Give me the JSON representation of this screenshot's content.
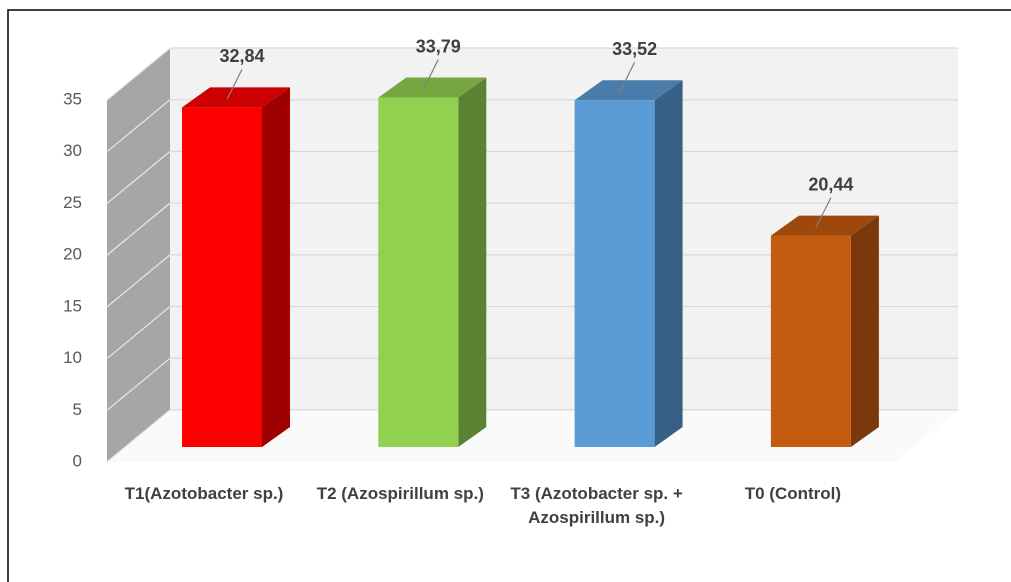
{
  "chart_data": {
    "type": "bar3d",
    "categories": [
      "T1(Azotobacter sp.)",
      "T2 (Azospirillum sp.)",
      "T3 (Azotobacter sp. + Azospirillum sp.)",
      "T0 (Control)"
    ],
    "values": [
      32.84,
      33.79,
      33.52,
      20.44
    ],
    "value_labels": [
      "32,84",
      "33,79",
      "33,52",
      "20,44"
    ],
    "colors": [
      "#ff0000",
      "#92d050",
      "#5b9bd5",
      "#c55a11"
    ],
    "ylim": [
      0,
      35
    ],
    "yticks": [
      0,
      5,
      10,
      15,
      20,
      25,
      30,
      35
    ],
    "grid": true
  }
}
